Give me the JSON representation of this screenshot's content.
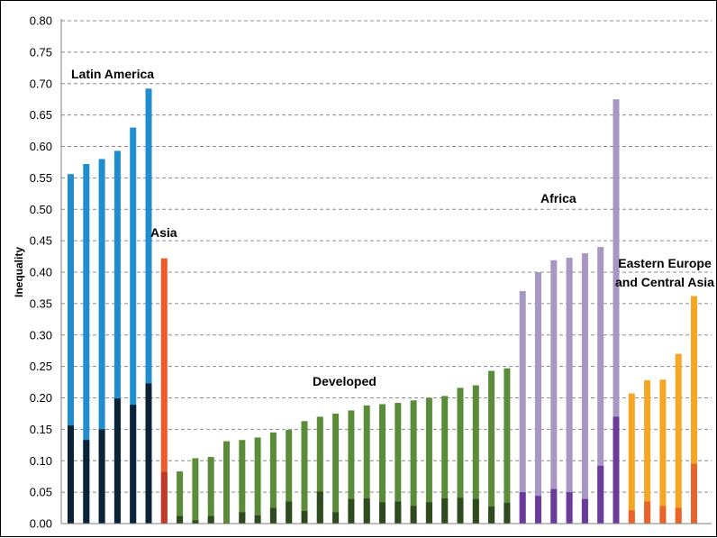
{
  "chart_data": {
    "type": "bar",
    "title": "",
    "xlabel": "",
    "ylabel": "Inequality",
    "ylim": [
      0,
      0.8
    ],
    "yticks": [
      "0.00",
      "0.05",
      "0.10",
      "0.15",
      "0.20",
      "0.25",
      "0.30",
      "0.35",
      "0.40",
      "0.45",
      "0.50",
      "0.55",
      "0.60",
      "0.65",
      "0.70",
      "0.75",
      "0.80"
    ],
    "grid": "horizontal-dashed",
    "legend": "none",
    "bar_count": 41,
    "groups": [
      {
        "label": "Latin America",
        "color_total": "#1f8dce",
        "color_inner": "#0c2236",
        "bars": [
          {
            "total": 0.556,
            "inner": 0.156
          },
          {
            "total": 0.572,
            "inner": 0.133
          },
          {
            "total": 0.58,
            "inner": 0.15
          },
          {
            "total": 0.593,
            "inner": 0.199
          },
          {
            "total": 0.63,
            "inner": 0.189
          },
          {
            "total": 0.692,
            "inner": 0.223
          }
        ]
      },
      {
        "label": "Asia",
        "color_total": "#f05a28",
        "color_inner": "#c0392b",
        "bars": [
          {
            "total": 0.422,
            "inner": 0.082
          }
        ]
      },
      {
        "label": "Developed",
        "color_total": "#5b8c3a",
        "color_inner": "#2e4a1e",
        "bars": [
          {
            "total": 0.083,
            "inner": 0.012
          },
          {
            "total": 0.104,
            "inner": 0.005
          },
          {
            "total": 0.106,
            "inner": 0.012
          },
          {
            "total": 0.131,
            "inner": 0.001
          },
          {
            "total": 0.133,
            "inner": 0.018
          },
          {
            "total": 0.137,
            "inner": 0.013
          },
          {
            "total": 0.145,
            "inner": 0.025
          },
          {
            "total": 0.149,
            "inner": 0.035
          },
          {
            "total": 0.163,
            "inner": 0.02
          },
          {
            "total": 0.17,
            "inner": 0.051
          },
          {
            "total": 0.175,
            "inner": 0.018
          },
          {
            "total": 0.18,
            "inner": 0.039
          },
          {
            "total": 0.188,
            "inner": 0.04
          },
          {
            "total": 0.19,
            "inner": 0.034
          },
          {
            "total": 0.192,
            "inner": 0.035
          },
          {
            "total": 0.196,
            "inner": 0.028
          },
          {
            "total": 0.2,
            "inner": 0.034
          },
          {
            "total": 0.203,
            "inner": 0.04
          },
          {
            "total": 0.216,
            "inner": 0.041
          },
          {
            "total": 0.22,
            "inner": 0.039
          },
          {
            "total": 0.243,
            "inner": 0.027
          },
          {
            "total": 0.247,
            "inner": 0.033
          }
        ]
      },
      {
        "label": "Africa",
        "color_total": "#a896c3",
        "color_inner": "#6a3b9b",
        "bars": [
          {
            "total": 0.37,
            "inner": 0.05
          },
          {
            "total": 0.4,
            "inner": 0.044
          },
          {
            "total": 0.419,
            "inner": 0.055
          },
          {
            "total": 0.423,
            "inner": 0.05
          },
          {
            "total": 0.43,
            "inner": 0.039
          },
          {
            "total": 0.44,
            "inner": 0.092
          },
          {
            "total": 0.675,
            "inner": 0.17
          }
        ]
      },
      {
        "label": "Eastern Europe\nand Central Asia",
        "color_total": "#f5a623",
        "color_inner": "#e8642a",
        "bars": [
          {
            "total": 0.207,
            "inner": 0.021
          },
          {
            "total": 0.228,
            "inner": 0.035
          },
          {
            "total": 0.229,
            "inner": 0.028
          },
          {
            "total": 0.27,
            "inner": 0.025
          },
          {
            "total": 0.362,
            "inner": 0.095
          }
        ]
      }
    ]
  }
}
